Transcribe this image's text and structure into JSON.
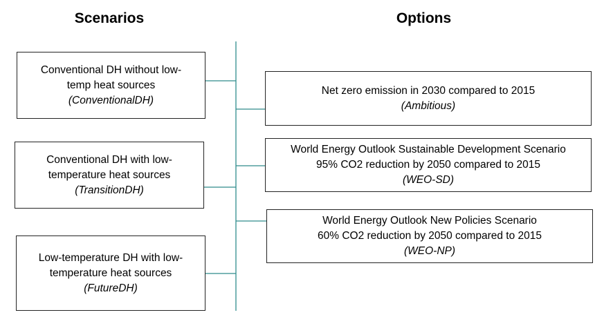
{
  "headings": {
    "scenarios": "Scenarios",
    "options": "Options"
  },
  "scenarios": [
    {
      "lines": [
        "Conventional DH without low-",
        "temp heat sources"
      ],
      "tag": "(ConventionalDH)"
    },
    {
      "lines": [
        "Conventional DH with low-",
        "temperature heat sources"
      ],
      "tag": "(TransitionDH)"
    },
    {
      "lines": [
        "Low-temperature DH with low-",
        "temperature heat sources"
      ],
      "tag": "(FutureDH)"
    }
  ],
  "options": [
    {
      "lines": [
        "Net zero emission in 2030 compared to 2015"
      ],
      "tag": "(Ambitious)"
    },
    {
      "lines": [
        "World Energy Outlook Sustainable Development Scenario",
        "95% CO2 reduction by 2050 compared to 2015"
      ],
      "tag": "(WEO-SD)"
    },
    {
      "lines": [
        "World Energy Outlook New Policies Scenario",
        "60% CO2 reduction by 2050 compared to 2015"
      ],
      "tag": "(WEO-NP)"
    }
  ],
  "colors": {
    "connector": "#2E8B8B",
    "box_border": "#222222"
  }
}
